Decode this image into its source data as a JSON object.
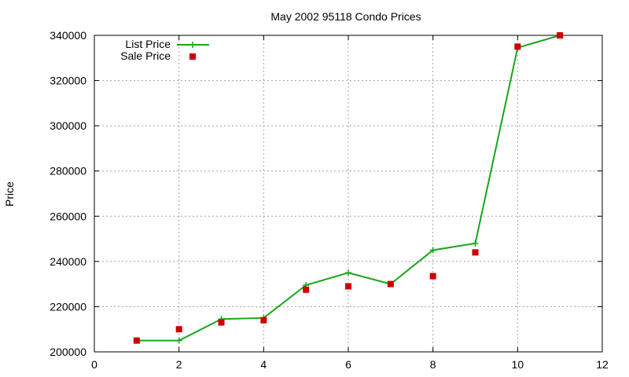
{
  "chart_data": {
    "type": "line",
    "title": "May 2002 95118 Condo Prices",
    "xlabel": "",
    "ylabel": "Price",
    "xlim": [
      0,
      12
    ],
    "ylim": [
      200000,
      340000
    ],
    "xticks": [
      0,
      2,
      4,
      6,
      8,
      10,
      12
    ],
    "yticks": [
      200000,
      220000,
      240000,
      260000,
      280000,
      300000,
      320000,
      340000
    ],
    "grid": true,
    "legend_position": "top-left",
    "series": [
      {
        "name": "List Price",
        "style": "line+crosses",
        "color": "#1aa51a",
        "x": [
          1,
          2,
          3,
          4,
          5,
          6,
          7,
          8,
          9,
          10,
          11
        ],
        "y": [
          205000,
          205000,
          214500,
          215000,
          229500,
          235000,
          230000,
          245000,
          248000,
          334500,
          340000
        ]
      },
      {
        "name": "Sale Price",
        "style": "squares",
        "color": "#cc0000",
        "x": [
          1,
          2,
          3,
          4,
          5,
          6,
          7,
          8,
          9,
          10,
          11
        ],
        "y": [
          205000,
          210000,
          213000,
          214000,
          227500,
          229000,
          230000,
          233500,
          244000,
          335000,
          340000
        ]
      }
    ]
  }
}
